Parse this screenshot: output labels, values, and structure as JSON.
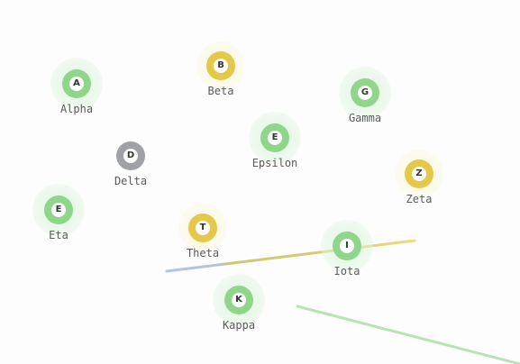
{
  "colors": {
    "green": "#8fd68a",
    "yellow": "#e3c84a",
    "gray": "#9fa1a6",
    "label": "#5a5a5a",
    "edge_blue": "#aec4ee",
    "edge_olive": "#cfc67a",
    "edge_yellow": "#eedc80",
    "edge_green": "#b8e3b2"
  },
  "nodes": [
    {
      "key": "alpha",
      "letter": "A",
      "label": "Alpha",
      "color": "green",
      "halo": true
    },
    {
      "key": "beta",
      "letter": "B",
      "label": "Beta",
      "color": "yellow",
      "halo": false
    },
    {
      "key": "gamma",
      "letter": "G",
      "label": "Gamma",
      "color": "green",
      "halo": true
    },
    {
      "key": "delta",
      "letter": "D",
      "label": "Delta",
      "color": "gray",
      "halo": false
    },
    {
      "key": "epsilon",
      "letter": "E",
      "label": "Epsilon",
      "color": "green",
      "halo": true
    },
    {
      "key": "zeta",
      "letter": "Z",
      "label": "Zeta",
      "color": "yellow",
      "halo": false
    },
    {
      "key": "eta",
      "letter": "E",
      "label": "Eta",
      "color": "green",
      "halo": true
    },
    {
      "key": "theta",
      "letter": "T",
      "label": "Theta",
      "color": "yellow",
      "halo": false
    },
    {
      "key": "iota",
      "letter": "I",
      "label": "Iota",
      "color": "green",
      "halo": true
    },
    {
      "key": "kappa",
      "letter": "K",
      "label": "Kappa",
      "color": "green",
      "halo": true
    }
  ]
}
